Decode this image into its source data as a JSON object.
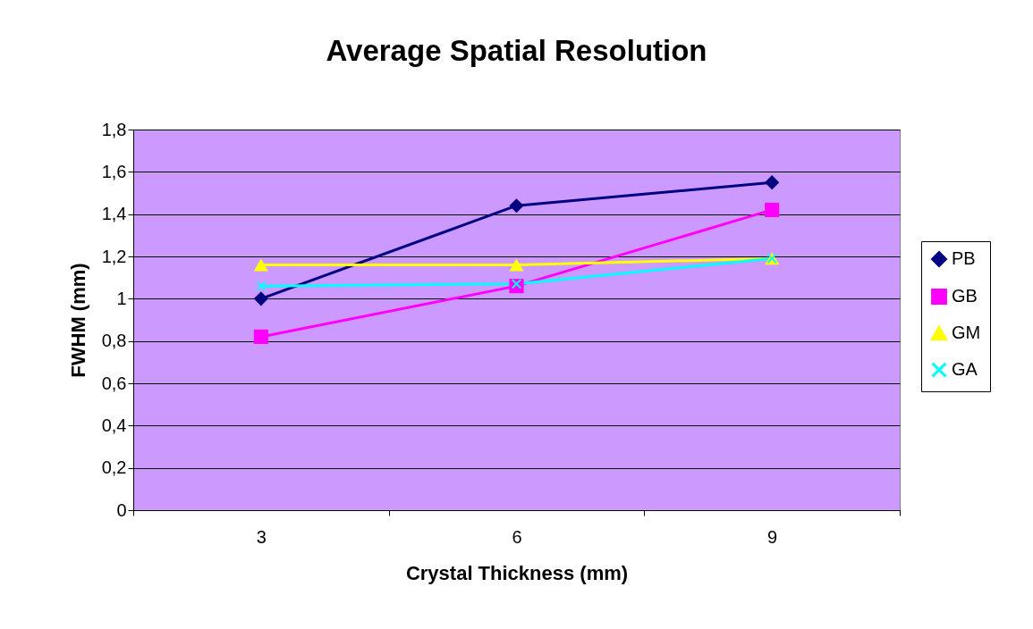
{
  "chart_data": {
    "type": "line",
    "title": "Average Spatial Resolution",
    "xlabel": "Crystal Thickness (mm)",
    "ylabel": "FWHM (mm)",
    "categories": [
      "3",
      "6",
      "9"
    ],
    "series": [
      {
        "name": "PB",
        "color": "#000080",
        "marker": "diamond",
        "values": [
          1.0,
          1.44,
          1.55
        ]
      },
      {
        "name": "GB",
        "color": "#ff00ff",
        "marker": "square",
        "values": [
          0.82,
          1.06,
          1.42
        ]
      },
      {
        "name": "GM",
        "color": "#ffff00",
        "marker": "triangle",
        "values": [
          1.16,
          1.16,
          1.19
        ]
      },
      {
        "name": "GA",
        "color": "#00ffff",
        "marker": "cross",
        "values": [
          1.06,
          1.07,
          1.19
        ]
      }
    ],
    "ylim": [
      0,
      1.8
    ],
    "yticks": [
      0,
      {
        "value": 0.2,
        "label": "0,2"
      },
      {
        "value": 0.4,
        "label": "0,4"
      },
      {
        "value": 0.6,
        "label": "0,6"
      },
      {
        "value": 0.8,
        "label": "0,8"
      },
      1,
      {
        "value": 1.2,
        "label": "1,2"
      },
      {
        "value": 1.4,
        "label": "1,4"
      },
      {
        "value": 1.6,
        "label": "1,6"
      },
      {
        "value": 1.8,
        "label": "1,8"
      }
    ],
    "grid": "y",
    "legend": "right",
    "line_style": "solid"
  }
}
